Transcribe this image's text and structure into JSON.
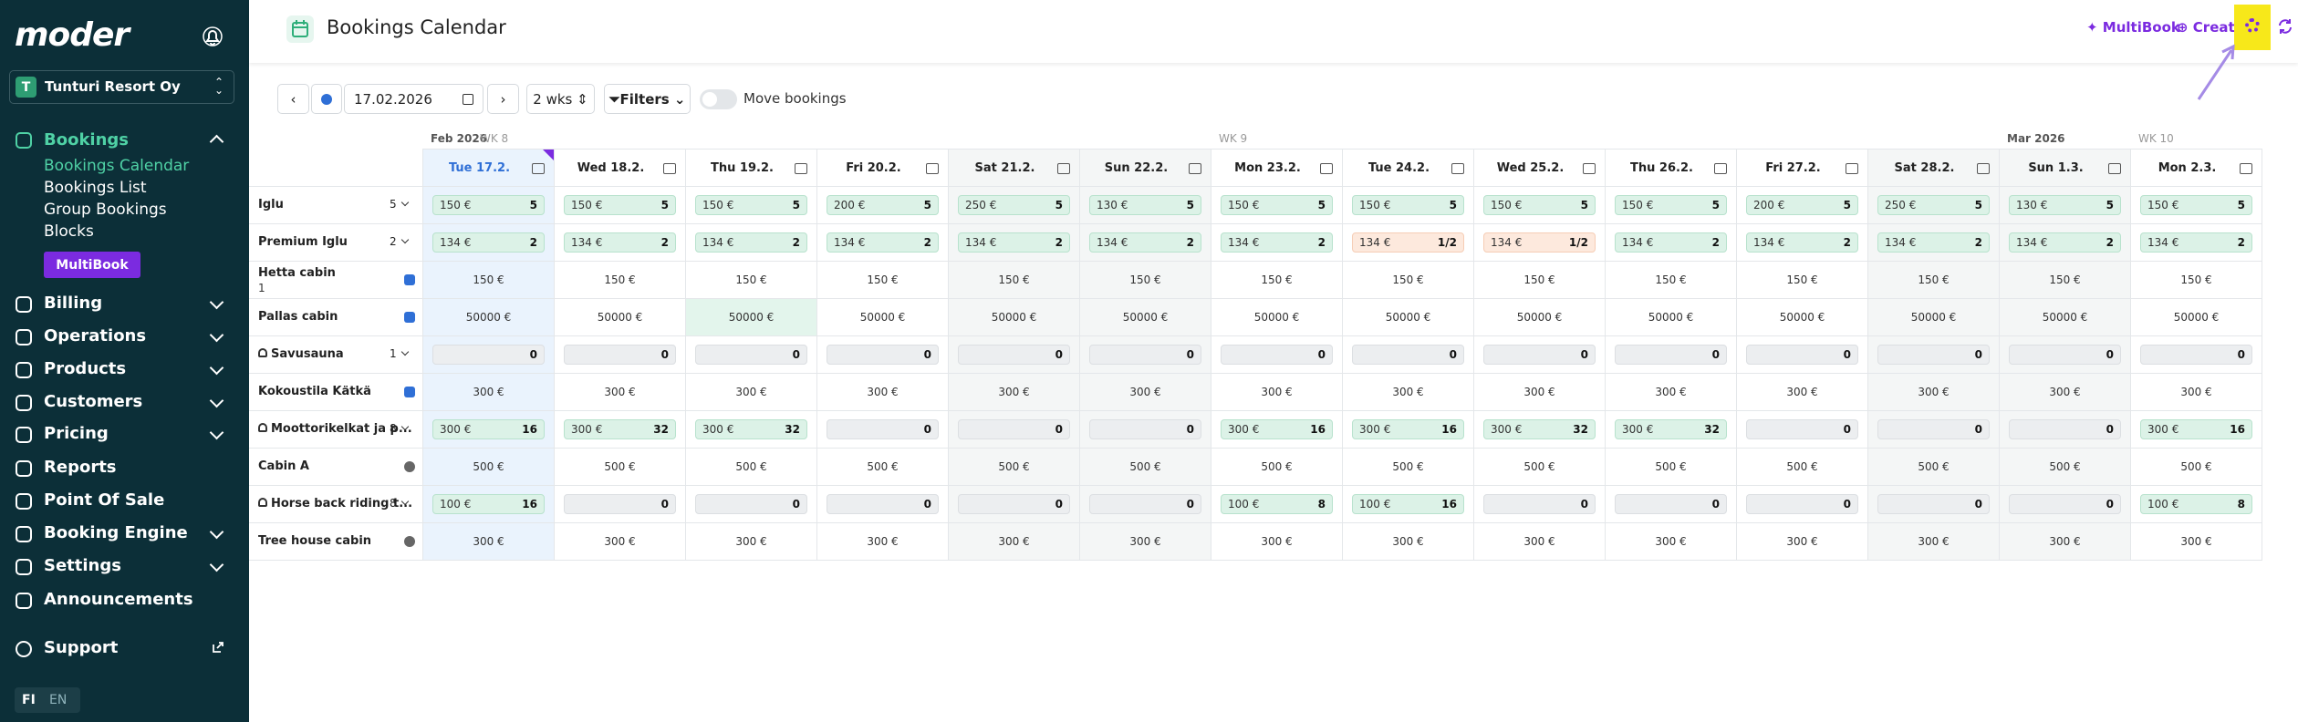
{
  "sidebar": {
    "logo": "moder",
    "org": {
      "initial": "T",
      "name": "Tunturi Resort Oy"
    },
    "bookings": {
      "label": "Bookings",
      "items": [
        "Bookings Calendar",
        "Bookings List",
        "Group Bookings",
        "Blocks"
      ],
      "button": "MultiBook"
    },
    "nav": [
      "Billing",
      "Operations",
      "Products",
      "Customers",
      "Pricing",
      "Reports",
      "Point Of Sale",
      "Booking Engine",
      "Settings",
      "Announcements"
    ],
    "support": "Support",
    "languages": [
      "FI",
      "EN"
    ]
  },
  "header": {
    "title": "Bookings Calendar",
    "actions": [
      "MultiBook",
      "Create"
    ]
  },
  "toolbar": {
    "date": "17.02.2026",
    "range": "2 wks",
    "filters": "Filters",
    "toggle": "Move bookings"
  },
  "calendar": {
    "columns": [
      {
        "label": "Tue 17.2.",
        "month": "Feb 2026",
        "week": "WK 8"
      },
      {
        "label": "Wed 18.2."
      },
      {
        "label": "Thu 19.2."
      },
      {
        "label": "Fri 20.2."
      },
      {
        "label": "Sat 21.2."
      },
      {
        "label": "Sun 22.2."
      },
      {
        "label": "Mon 23.2.",
        "week": "WK 9"
      },
      {
        "label": "Tue 24.2."
      },
      {
        "label": "Wed 25.2."
      },
      {
        "label": "Thu 26.2."
      },
      {
        "label": "Fri 27.2."
      },
      {
        "label": "Sat 28.2."
      },
      {
        "label": "Sun 1.3.",
        "month": "Mar 2026"
      },
      {
        "label": "Mon 2.3.",
        "week": "WK 10"
      }
    ],
    "rows": [
      {
        "name": "Iglu",
        "badge": "5",
        "cells": [
          {
            "price": "150 €",
            "count": "5"
          },
          {
            "price": "150 €",
            "count": "5"
          },
          {
            "price": "150 €",
            "count": "5"
          },
          {
            "price": "200 €",
            "count": "5"
          },
          {
            "price": "250 €",
            "count": "5"
          },
          {
            "price": "130 €",
            "count": "5"
          },
          {
            "price": "150 €",
            "count": "5"
          },
          {
            "price": "150 €",
            "count": "5"
          },
          {
            "price": "150 €",
            "count": "5"
          },
          {
            "price": "150 €",
            "count": "5"
          },
          {
            "price": "200 €",
            "count": "5"
          },
          {
            "price": "250 €",
            "count": "5"
          },
          {
            "price": "130 €",
            "count": "5"
          },
          {
            "price": "150 €",
            "count": "5"
          }
        ]
      },
      {
        "name": "Premium Iglu",
        "badge": "2",
        "cells": [
          {
            "price": "134 €",
            "count": "2"
          },
          {
            "price": "134 €",
            "count": "2"
          },
          {
            "price": "134 €",
            "count": "2"
          },
          {
            "price": "134 €",
            "count": "2"
          },
          {
            "price": "134 €",
            "count": "2"
          },
          {
            "price": "134 €",
            "count": "2"
          },
          {
            "price": "134 €",
            "count": "2"
          },
          {
            "price": "134 €",
            "count": "1/2"
          },
          {
            "price": "134 €",
            "count": "1/2"
          },
          {
            "price": "134 €",
            "count": "2"
          },
          {
            "price": "134 €",
            "count": "2"
          },
          {
            "price": "134 €",
            "count": "2"
          },
          {
            "price": "134 €",
            "count": "2"
          },
          {
            "price": "134 €",
            "count": "2"
          }
        ]
      },
      {
        "name": "Hetta cabin",
        "sub": "1",
        "cells": [
          "150 €",
          "150 €",
          "150 €",
          "150 €",
          "150 €",
          "150 €",
          "150 €",
          "150 €",
          "150 €",
          "150 €",
          "150 €",
          "150 €",
          "150 €",
          "150 €"
        ]
      },
      {
        "name": "Pallas cabin",
        "cells": [
          "50000 €",
          "50000 €",
          {
            "price": "50000 €",
            "selected": true
          },
          "50000 €",
          "50000 €",
          "50000 €",
          "50000 €",
          "50000 €",
          "50000 €",
          "50000 €",
          "50000 €",
          "50000 €",
          "50000 €",
          "50000 €"
        ]
      },
      {
        "name": "Savusauna",
        "badge": "1",
        "cells": [
          {
            "count": "0"
          },
          {
            "count": "0"
          },
          {
            "count": "0"
          },
          {
            "count": "0"
          },
          {
            "count": "0"
          },
          {
            "count": "0"
          },
          {
            "count": "0"
          },
          {
            "count": "0"
          },
          {
            "count": "0"
          },
          {
            "count": "0"
          },
          {
            "count": "0"
          },
          {
            "count": "0"
          },
          {
            "count": "0"
          },
          {
            "count": "0"
          }
        ]
      },
      {
        "name": "Kokoustila Kätkä",
        "cells": [
          "300 €",
          "300 €",
          "300 €",
          "300 €",
          "300 €",
          "300 €",
          "300 €",
          "300 €",
          "300 €",
          "300 €",
          "300 €",
          "300 €",
          "300 €",
          "300 €"
        ]
      },
      {
        "name": "Moottorikelkat ja p...",
        "badge": "8",
        "cells": [
          {
            "price": "300 €",
            "count": "16"
          },
          {
            "price": "300 €",
            "count": "32"
          },
          {
            "price": "300 €",
            "count": "32"
          },
          {
            "count": "0"
          },
          {
            "count": "0"
          },
          {
            "count": "0"
          },
          {
            "price": "300 €",
            "count": "16"
          },
          {
            "price": "300 €",
            "count": "16"
          },
          {
            "price": "300 €",
            "count": "32"
          },
          {
            "price": "300 €",
            "count": "32"
          },
          {
            "count": "0"
          },
          {
            "count": "0"
          },
          {
            "count": "0"
          },
          {
            "price": "300 €",
            "count": "16"
          }
        ]
      },
      {
        "name": "Cabin A",
        "cells": [
          "500 €",
          "500 €",
          "500 €",
          "500 €",
          "500 €",
          "500 €",
          "500 €",
          "500 €",
          "500 €",
          "500 €",
          "500 €",
          "500 €",
          "500 €",
          "500 €"
        ]
      },
      {
        "name": "Horse back riding t...",
        "badge": "8",
        "cells": [
          {
            "price": "100 €",
            "count": "16"
          },
          {
            "count": "0"
          },
          {
            "count": "0"
          },
          {
            "count": "0"
          },
          {
            "count": "0"
          },
          {
            "count": "0"
          },
          {
            "price": "100 €",
            "count": "8"
          },
          {
            "price": "100 €",
            "count": "16"
          },
          {
            "count": "0"
          },
          {
            "count": "0"
          },
          {
            "count": "0"
          },
          {
            "count": "0"
          },
          {
            "count": "0"
          },
          {
            "price": "100 €",
            "count": "8"
          }
        ]
      },
      {
        "name": "Tree house cabin",
        "cells": [
          "300 €",
          "300 €",
          "300 €",
          "300 €",
          "300 €",
          "300 €",
          "300 €",
          "300 €",
          "300 €",
          "300 €",
          "300 €",
          "300 €",
          "300 €",
          "300 €"
        ]
      }
    ]
  }
}
